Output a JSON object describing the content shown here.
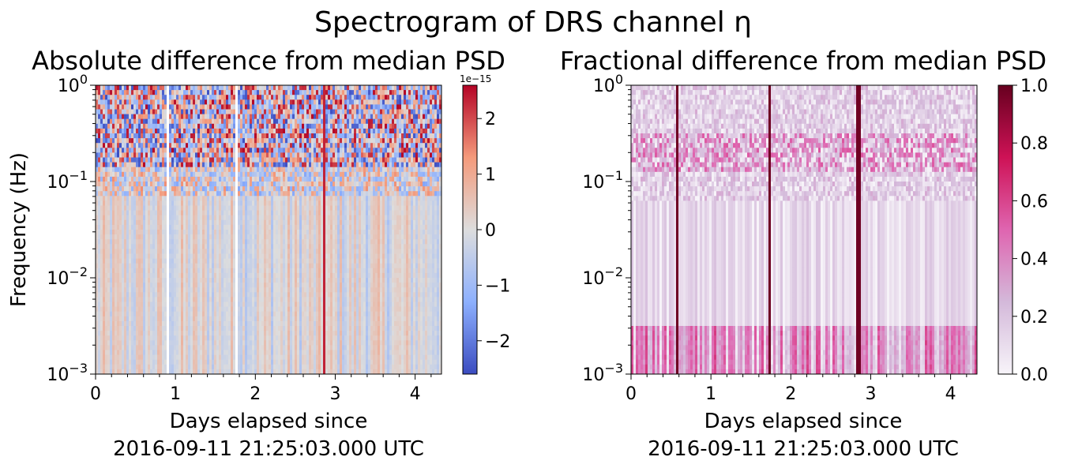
{
  "figure": {
    "suptitle": "Spectrogram of DRS channel η"
  },
  "chart_data": [
    {
      "type": "heatmap",
      "title": "Absolute difference from median PSD",
      "xlabel": "Days elapsed since\n2016-09-11 21:25:03.000 UTC",
      "ylabel": "Frequency (Hz)",
      "xlim": [
        0,
        4.33
      ],
      "ylim": [
        0.001,
        1
      ],
      "yscale": "log",
      "x_ticks": [
        0,
        1,
        2,
        3,
        4
      ],
      "y_ticks": [
        {
          "base": "10",
          "exp": "−3",
          "value": 0.001
        },
        {
          "base": "10",
          "exp": "−2",
          "value": 0.01
        },
        {
          "base": "10",
          "exp": "−1",
          "value": 0.1
        },
        {
          "base": "10",
          "exp": "0",
          "value": 1
        }
      ],
      "colormap": "coolwarm",
      "colorbar": {
        "range": [
          -2.6e-15,
          2.6e-15
        ],
        "ticks": [
          {
            "value": 2,
            "label": "2"
          },
          {
            "value": 1,
            "label": "1"
          },
          {
            "value": 0,
            "label": "0"
          },
          {
            "value": -1,
            "label": "−1"
          },
          {
            "value": -2,
            "label": "−2"
          }
        ],
        "scale_label": "1e−15"
      },
      "features": {
        "white_gaps_days": [
          0.88,
          1.74,
          1.76
        ],
        "strong_columns_days": [
          2.84
        ],
        "bright_band_hz": [
          0.15,
          1.0
        ]
      },
      "grid": false
    },
    {
      "type": "heatmap",
      "title": "Fractional difference from median PSD",
      "xlabel": "Days elapsed since\n2016-09-11 21:25:03.000 UTC",
      "ylabel": "",
      "xlim": [
        0,
        4.33
      ],
      "ylim": [
        0.001,
        1
      ],
      "yscale": "log",
      "x_ticks": [
        0,
        1,
        2,
        3,
        4
      ],
      "y_ticks": [
        {
          "base": "10",
          "exp": "−3",
          "value": 0.001
        },
        {
          "base": "10",
          "exp": "−2",
          "value": 0.01
        },
        {
          "base": "10",
          "exp": "−1",
          "value": 0.1
        },
        {
          "base": "10",
          "exp": "0",
          "value": 1
        }
      ],
      "colormap": "PuRd",
      "colorbar": {
        "range": [
          0,
          1
        ],
        "ticks": [
          {
            "value": 1.0,
            "label": "1.0"
          },
          {
            "value": 0.8,
            "label": "0.8"
          },
          {
            "value": 0.6,
            "label": "0.6"
          },
          {
            "value": 0.4,
            "label": "0.4"
          },
          {
            "value": 0.2,
            "label": "0.2"
          },
          {
            "value": 0.0,
            "label": "0.0"
          }
        ],
        "scale_label": ""
      },
      "features": {
        "strong_columns_days": [
          0.56,
          1.73,
          2.82,
          2.84
        ],
        "bright_band_hz": [
          0.08,
          0.3
        ]
      },
      "grid": false
    }
  ]
}
